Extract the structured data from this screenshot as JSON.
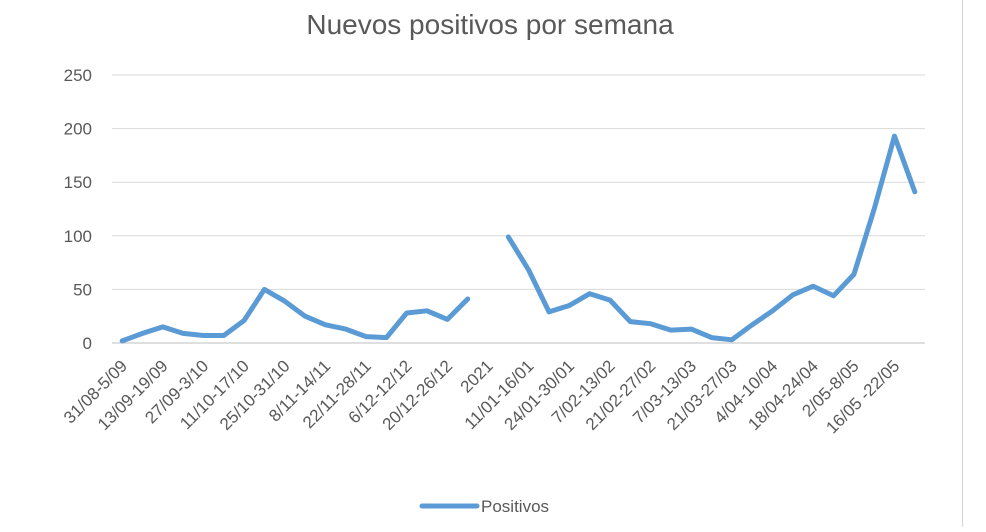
{
  "chart_data": {
    "type": "line",
    "title": "Nuevos positivos por semana",
    "xlabel": "",
    "ylabel": "",
    "ylim": [
      0,
      250
    ],
    "yticks": [
      0,
      50,
      100,
      150,
      200,
      250
    ],
    "grid": true,
    "legend": "bottom",
    "categories": [
      "31/08-5/09",
      "",
      "13/09-19/09",
      "",
      "27/09-3/10",
      "",
      "11/10-17/10",
      "",
      "25/10-31/10",
      "",
      "8/11-14/11",
      "",
      "22/11-28/11",
      "",
      "6/12-12/12",
      "",
      "20/12-26/12",
      "",
      "2021",
      "",
      "11/01-16/01",
      "",
      "24/01-30/01",
      "",
      "7/02-13/02",
      "",
      "21/02-27/02",
      "",
      "7/03-13/03",
      "",
      "21/03-27/03",
      "",
      "4/04-10/04",
      "",
      "18/04-24/04",
      "",
      "2/05-8/05",
      "",
      "16/05 -22/05",
      ""
    ],
    "series": [
      {
        "name": "Positivos",
        "color": "#5b9bd5",
        "values": [
          2,
          9,
          15,
          9,
          7,
          7,
          21,
          50,
          39,
          25,
          17,
          13,
          6,
          5,
          28,
          30,
          22,
          41,
          null,
          99,
          68,
          29,
          35,
          46,
          40,
          20,
          18,
          12,
          13,
          5,
          3,
          17,
          30,
          45,
          53,
          44,
          64,
          125,
          193,
          141
        ]
      }
    ]
  }
}
